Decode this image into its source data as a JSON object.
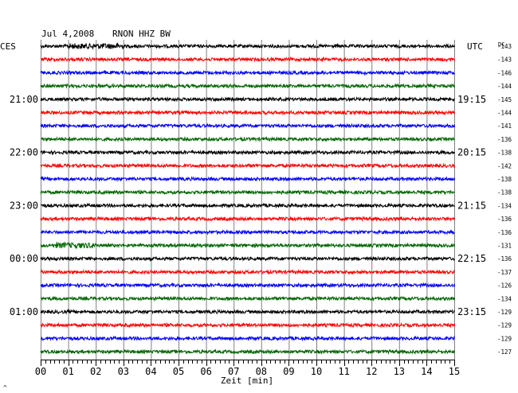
{
  "header": {
    "date": "Jul 4,2008",
    "station": "RNON HHZ BW",
    "left_timezone": "CES",
    "right_timezone": "UTC",
    "dc_label": "DC"
  },
  "chart_data": {
    "type": "line",
    "title": "Jul 4,2008   RNON HHZ BW",
    "xlabel": "Zeit [min]",
    "ylabel": "",
    "x_ticks": [
      "00",
      "01",
      "02",
      "03",
      "04",
      "05",
      "06",
      "07",
      "08",
      "09",
      "10",
      "11",
      "12",
      "13",
      "14",
      "15"
    ],
    "xlim": [
      0,
      15
    ],
    "grid": true,
    "trace_colors": [
      "#000000",
      "#ff0000",
      "#0000ff",
      "#006600"
    ],
    "left_time_labels": [
      {
        "row": 4,
        "label": "21:00"
      },
      {
        "row": 8,
        "label": "22:00"
      },
      {
        "row": 12,
        "label": "23:00"
      },
      {
        "row": 16,
        "label": "00:00"
      },
      {
        "row": 20,
        "label": "01:00"
      }
    ],
    "right_time_labels": [
      {
        "row": 4,
        "label": "19:15"
      },
      {
        "row": 8,
        "label": "20:15"
      },
      {
        "row": 12,
        "label": "21:15"
      },
      {
        "row": 16,
        "label": "22:15"
      },
      {
        "row": 20,
        "label": "23:15"
      }
    ],
    "dc_offsets": [
      -143,
      -143,
      -146,
      -144,
      -145,
      -144,
      -141,
      -136,
      -138,
      -142,
      -138,
      -138,
      -134,
      -136,
      -136,
      -131,
      -136,
      -137,
      -126,
      -134,
      -129,
      -129,
      -129,
      -127
    ],
    "events": [
      {
        "row": 0,
        "x_min": 1.0,
        "x_max": 3.0,
        "amplitude": "elevated"
      },
      {
        "row": 15,
        "x_min": 0.5,
        "x_max": 2.0,
        "amplitude": "elevated"
      }
    ]
  },
  "footer": {
    "corner_mark": "^"
  }
}
